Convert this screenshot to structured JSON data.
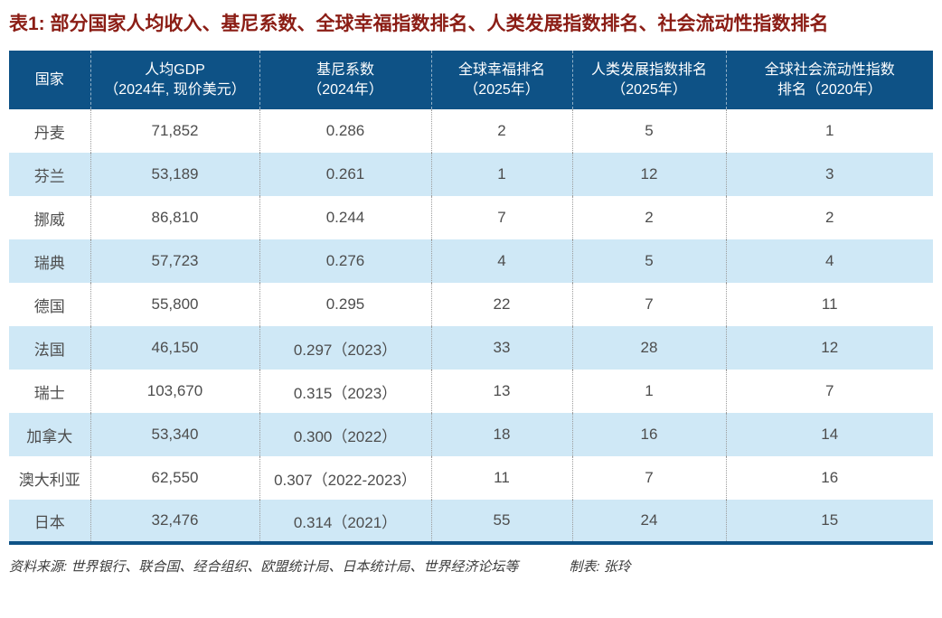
{
  "chart_data": {
    "type": "table",
    "title": "表1: 部分国家人均收入、基尼系数、全球幸福指数排名、人类发展指数排名、社会流动性指数排名",
    "columns": [
      {
        "label": "国家",
        "line1": "国家",
        "line2": ""
      },
      {
        "label": "人均GDP（2024年, 现价美元）",
        "line1": "人均GDP",
        "line2": "（2024年, 现价美元）"
      },
      {
        "label": "基尼系数（2024年）",
        "line1": "基尼系数",
        "line2": "（2024年）"
      },
      {
        "label": "全球幸福排名（2025年）",
        "line1": "全球幸福排名",
        "line2": "（2025年）"
      },
      {
        "label": "人类发展指数排名（2025年）",
        "line1": "人类发展指数排名",
        "line2": "（2025年）"
      },
      {
        "label": "全球社会流动性指数排名（2020年）",
        "line1": "全球社会流动性指数",
        "line2": "排名（2020年）"
      }
    ],
    "rows": [
      {
        "country": "丹麦",
        "gdp": "71,852",
        "gini": "0.286",
        "happiness": "2",
        "hdi": "5",
        "mobility": "1"
      },
      {
        "country": "芬兰",
        "gdp": "53,189",
        "gini": "0.261",
        "happiness": "1",
        "hdi": "12",
        "mobility": "3"
      },
      {
        "country": "挪威",
        "gdp": "86,810",
        "gini": "0.244",
        "happiness": "7",
        "hdi": "2",
        "mobility": "2"
      },
      {
        "country": "瑞典",
        "gdp": "57,723",
        "gini": "0.276",
        "happiness": "4",
        "hdi": "5",
        "mobility": "4"
      },
      {
        "country": "德国",
        "gdp": "55,800",
        "gini": "0.295",
        "happiness": "22",
        "hdi": "7",
        "mobility": "11"
      },
      {
        "country": "法国",
        "gdp": "46,150",
        "gini": "0.297（2023）",
        "happiness": "33",
        "hdi": "28",
        "mobility": "12"
      },
      {
        "country": "瑞士",
        "gdp": "103,670",
        "gini": "0.315（2023）",
        "happiness": "13",
        "hdi": "1",
        "mobility": "7"
      },
      {
        "country": "加拿大",
        "gdp": "53,340",
        "gini": "0.300（2022）",
        "happiness": "18",
        "hdi": "16",
        "mobility": "14"
      },
      {
        "country": "澳大利亚",
        "gdp": "62,550",
        "gini": "0.307（2022-2023）",
        "happiness": "11",
        "hdi": "7",
        "mobility": "16"
      },
      {
        "country": "日本",
        "gdp": "32,476",
        "gini": "0.314（2021）",
        "happiness": "55",
        "hdi": "24",
        "mobility": "15"
      }
    ],
    "source_note": "资料来源: 世界银行、联合国、经合组织、欧盟统计局、日本统计局、世界经济论坛等",
    "credit_note": "制表: 张玲"
  },
  "colors": {
    "header_bg": "#0E5286",
    "alt_row_bg": "#CFE8F6",
    "title_color": "#8B1D15",
    "cell_text": "#4D4D4D",
    "bottom_border": "#0E5286"
  }
}
